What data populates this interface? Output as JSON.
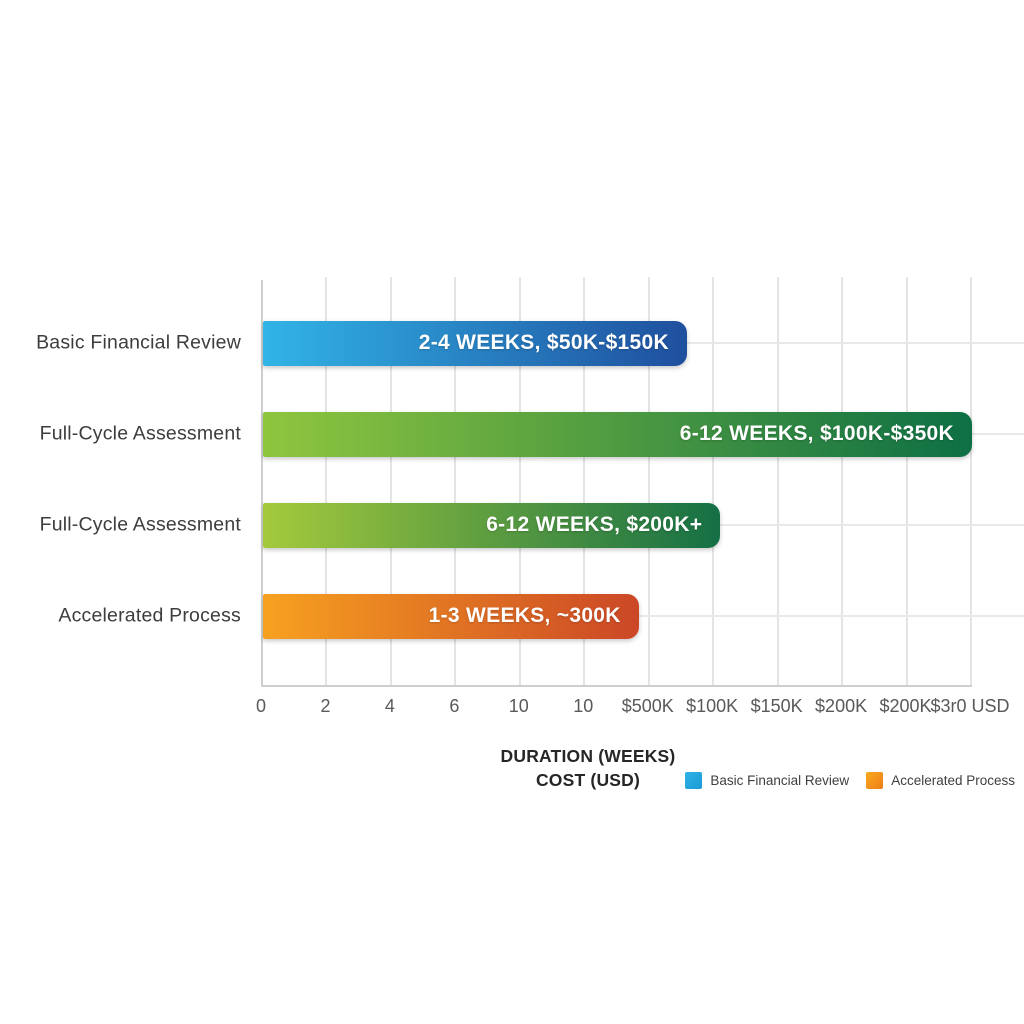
{
  "chart_data": {
    "type": "bar",
    "orientation": "horizontal",
    "title": "",
    "xlabel_line1": "DURATION (WEEKS)",
    "xlabel_line2": "COST (USD)",
    "grid": true,
    "legend_position": "bottom-right",
    "categories": [
      "Basic Financial Review",
      "Full-Cycle Assessment",
      "Full-Cycle Assessment",
      "Accelerated Process"
    ],
    "bars": [
      {
        "category": "Basic Financial Review",
        "value_label": "2-4 WEEKS, $50K-$150K",
        "duration_weeks": "2-4",
        "cost_usd": "$50K-$150K",
        "width_pct": 59.8,
        "color_start": "#31b4e6",
        "color_end": "#1f4f9e"
      },
      {
        "category": "Full-Cycle Assessment",
        "value_label": "6-12 WEEKS, $100K-$350K",
        "duration_weeks": "6-12",
        "cost_usd": "$100K-$350K",
        "width_pct": 100,
        "color_start": "#8fc63e",
        "color_end": "#0d6f44"
      },
      {
        "category": "Full-Cycle Assessment",
        "value_label": "6-12 WEEKS, $200K+",
        "duration_weeks": "6-12",
        "cost_usd": "$200K+",
        "width_pct": 64.5,
        "color_start": "#a4ca3c",
        "color_end": "#156f45"
      },
      {
        "category": "Accelerated Process",
        "value_label": "1-3 WEEKS, ~300K",
        "duration_weeks": "1-3",
        "cost_usd": "~300K",
        "width_pct": 53.0,
        "color_start": "#f7a120",
        "color_end": "#cb4726"
      }
    ],
    "x_ticks": [
      "0",
      "2",
      "4",
      "6",
      "10",
      "10",
      "$500K",
      "$100K",
      "$150K",
      "$200K",
      "$200K",
      "$3r0 USD"
    ],
    "legend": [
      {
        "label": "Basic Financial Review",
        "color_start": "#2fb3e5",
        "color_end": "#1b9ad6"
      },
      {
        "label": "Accelerated Process",
        "color_start": "#f9a91e",
        "color_end": "#ee7d19"
      }
    ]
  }
}
